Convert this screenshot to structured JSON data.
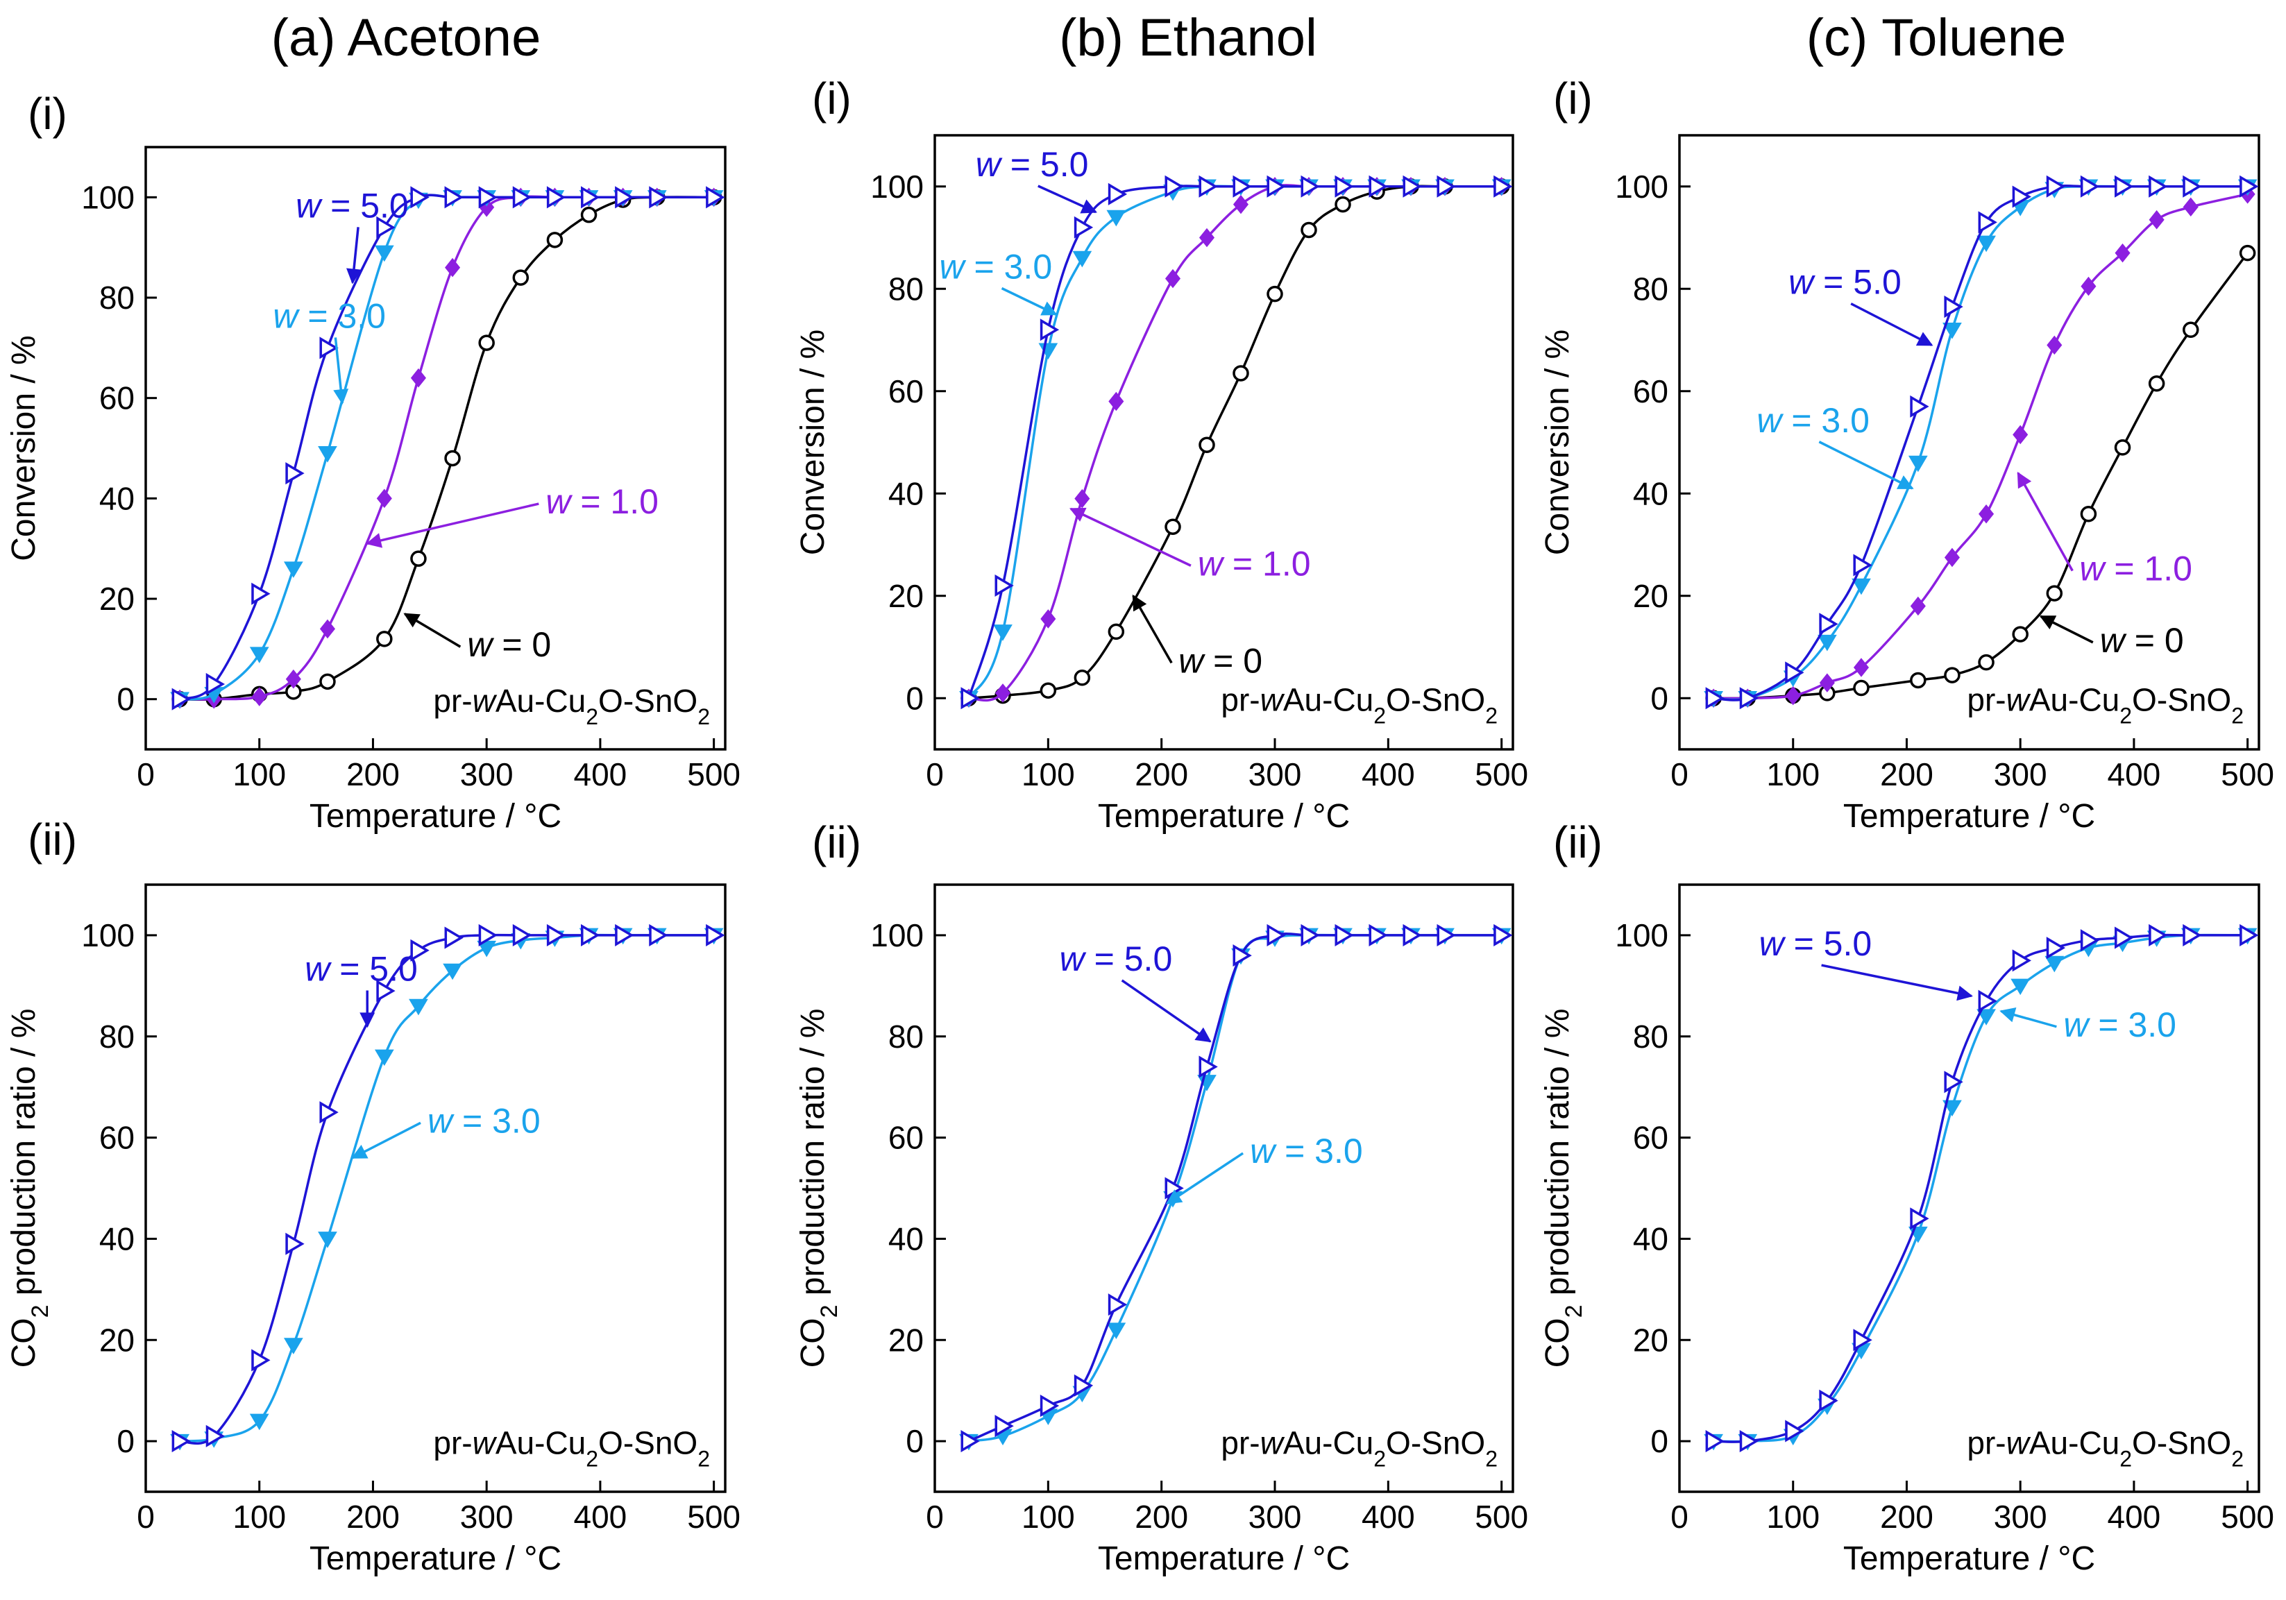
{
  "colors": {
    "w0": "#000000",
    "w1": "#8c1fe0",
    "w3": "#1aa3ec",
    "w5": "#1e14d6"
  },
  "columns": [
    {
      "title": "(a) Acetone"
    },
    {
      "title": "(b) Ethanol"
    },
    {
      "title": "(c) Toluene"
    }
  ],
  "row_tags": [
    "(i)",
    "(ii)"
  ],
  "chart_data": [
    {
      "id": "a-i",
      "type": "line",
      "xlabel": "Temperature / °C",
      "ylabel": "Conversion / %",
      "ylabel_parts": {
        "pre": "Conversion / %",
        "sub": "",
        "post": ""
      },
      "xlim": [
        0,
        510
      ],
      "ylim": [
        -10,
        110
      ],
      "xticks": [
        0,
        100,
        200,
        300,
        400,
        500
      ],
      "yticks": [
        0,
        20,
        40,
        60,
        80,
        100
      ],
      "sample_label": {
        "pre": "pr-",
        "w": "w",
        "mid": "Au-Cu",
        "s1": "2",
        "mid2": "O-SnO",
        "s2": "2"
      },
      "x": [
        30,
        60,
        100,
        130,
        160,
        210,
        240,
        270,
        300,
        330,
        360,
        390,
        420,
        450,
        500
      ],
      "series": [
        {
          "name": "w = 0",
          "color_key": "w0",
          "marker": "circle",
          "values": [
            0,
            0,
            1,
            1.5,
            3.5,
            12,
            28,
            48,
            71,
            84,
            91.5,
            96.5,
            99.5,
            100,
            100
          ]
        },
        {
          "name": "w = 1.0",
          "color_key": "w1",
          "marker": "diamond",
          "values": [
            0,
            0,
            0.5,
            4,
            14,
            40,
            64,
            86,
            98,
            100,
            100,
            100,
            100,
            100,
            100
          ]
        },
        {
          "name": "w = 3.0",
          "color_key": "w3",
          "marker": "tri-down",
          "values": [
            0,
            1,
            9,
            26,
            49,
            89,
            99.5,
            100,
            100,
            100,
            100,
            100,
            100,
            100,
            100
          ]
        },
        {
          "name": "w = 5.0",
          "color_key": "w5",
          "marker": "tri-right",
          "values": [
            0,
            3,
            21,
            45,
            70,
            94,
            100,
            100,
            100,
            100,
            100,
            100,
            100,
            100,
            100
          ]
        }
      ],
      "annotations": [
        {
          "text": "w = 5.0",
          "color_key": "w5",
          "lx": 132,
          "ly": 96,
          "tx": 182,
          "ty": 83
        },
        {
          "text": "w = 3.0",
          "color_key": "w3",
          "lx": 112,
          "ly": 74,
          "tx": 173,
          "ty": 59
        },
        {
          "text": "w = 1.0",
          "color_key": "w1",
          "lx": 352,
          "ly": 37,
          "tx": 195,
          "ty": 31
        },
        {
          "text": "w = 0",
          "color_key": "w0",
          "lx": 283,
          "ly": 8.5,
          "tx": 228,
          "ty": 17
        }
      ]
    },
    {
      "id": "b-i",
      "type": "line",
      "xlabel": "Temperature / °C",
      "ylabel": "Conversion / %",
      "ylabel_parts": {
        "pre": "Conversion / %",
        "sub": "",
        "post": ""
      },
      "xlim": [
        0,
        510
      ],
      "ylim": [
        -10,
        110
      ],
      "xticks": [
        0,
        100,
        200,
        300,
        400,
        500
      ],
      "yticks": [
        0,
        20,
        40,
        60,
        80,
        100
      ],
      "sample_label": {
        "pre": "pr-",
        "w": "w",
        "mid": "Au-Cu",
        "s1": "2",
        "mid2": "O-SnO",
        "s2": "2"
      },
      "x": [
        30,
        60,
        100,
        130,
        160,
        210,
        240,
        270,
        300,
        330,
        360,
        390,
        420,
        450,
        500
      ],
      "series": [
        {
          "name": "w = 0",
          "color_key": "w0",
          "marker": "circle",
          "values": [
            0,
            0.5,
            1.5,
            4,
            13,
            33.5,
            49.5,
            63.5,
            79,
            91.5,
            96.5,
            99,
            100,
            100,
            100
          ]
        },
        {
          "name": "w = 1.0",
          "color_key": "w1",
          "marker": "diamond",
          "values": [
            0,
            1,
            15.5,
            39,
            58,
            82,
            90,
            96.5,
            100,
            100,
            100,
            100,
            100,
            100,
            100
          ]
        },
        {
          "name": "w = 3.0",
          "color_key": "w3",
          "marker": "tri-down",
          "values": [
            0,
            13,
            68,
            86,
            94,
            99,
            100,
            100,
            100,
            100,
            100,
            100,
            100,
            100,
            100
          ]
        },
        {
          "name": "w = 5.0",
          "color_key": "w5",
          "marker": "tri-right",
          "values": [
            0,
            22,
            72,
            92,
            98.5,
            100,
            100,
            100,
            100,
            100,
            100,
            100,
            100,
            100,
            100
          ]
        }
      ],
      "annotations": [
        {
          "text": "w = 5.0",
          "color_key": "w5",
          "lx": 36,
          "ly": 102,
          "tx": 142,
          "ty": 95
        },
        {
          "text": "w = 3.0",
          "color_key": "w3",
          "lx": 4,
          "ly": 82,
          "tx": 107,
          "ty": 75
        },
        {
          "text": "w = 1.0",
          "color_key": "w1",
          "lx": 232,
          "ly": 24,
          "tx": 120,
          "ty": 37
        },
        {
          "text": "w = 0",
          "color_key": "w0",
          "lx": 215,
          "ly": 5,
          "tx": 175,
          "ty": 20
        }
      ]
    },
    {
      "id": "c-i",
      "type": "line",
      "xlabel": "Temperature / °C",
      "ylabel": "Conversion / %",
      "ylabel_parts": {
        "pre": "Conversion / %",
        "sub": "",
        "post": ""
      },
      "xlim": [
        0,
        510
      ],
      "ylim": [
        -10,
        110
      ],
      "xticks": [
        0,
        100,
        200,
        300,
        400,
        500
      ],
      "yticks": [
        0,
        20,
        40,
        60,
        80,
        100
      ],
      "sample_label": {
        "pre": "pr-",
        "w": "w",
        "mid": "Au-Cu",
        "s1": "2",
        "mid2": "O-SnO",
        "s2": "2"
      },
      "x": [
        30,
        60,
        100,
        130,
        160,
        210,
        240,
        270,
        300,
        330,
        360,
        390,
        420,
        450,
        500
      ],
      "series": [
        {
          "name": "w = 0",
          "color_key": "w0",
          "marker": "circle",
          "values": [
            0,
            0,
            0.5,
            1,
            2,
            3.5,
            4.5,
            7,
            12.5,
            20.5,
            36,
            49,
            61.5,
            72,
            87
          ]
        },
        {
          "name": "w = 1.0",
          "color_key": "w1",
          "marker": "diamond",
          "values": [
            0,
            0,
            0.5,
            3,
            6,
            18,
            27.5,
            36,
            51.5,
            69,
            80.5,
            87,
            93.5,
            96,
            98.5
          ]
        },
        {
          "name": "w = 3.0",
          "color_key": "w3",
          "marker": "tri-down",
          "values": [
            0,
            0,
            4,
            11,
            22,
            46,
            72,
            89,
            96,
            99.5,
            100,
            100,
            100,
            100,
            100
          ]
        },
        {
          "name": "w = 5.0",
          "color_key": "w5",
          "marker": "tri-right",
          "values": [
            0,
            0,
            5,
            14.5,
            26,
            57,
            76.5,
            93,
            98,
            100,
            100,
            100,
            100,
            100,
            100
          ]
        }
      ],
      "annotations": [
        {
          "text": "w = 5.0",
          "color_key": "w5",
          "lx": 96,
          "ly": 79,
          "tx": 222,
          "ty": 69
        },
        {
          "text": "w = 3.0",
          "color_key": "w3",
          "lx": 68,
          "ly": 52,
          "tx": 205,
          "ty": 41
        },
        {
          "text": "w = 1.0",
          "color_key": "w1",
          "lx": 352,
          "ly": 23,
          "tx": 298,
          "ty": 44
        },
        {
          "text": "w = 0",
          "color_key": "w0",
          "lx": 370,
          "ly": 9,
          "tx": 318,
          "ty": 16
        }
      ]
    },
    {
      "id": "a-ii",
      "type": "line",
      "xlabel": "Temperature / °C",
      "ylabel": "CO2 production ratio / %",
      "ylabel_parts": {
        "pre": "CO",
        "sub": "2",
        "post": " production ratio / %"
      },
      "xlim": [
        0,
        510
      ],
      "ylim": [
        -10,
        110
      ],
      "xticks": [
        0,
        100,
        200,
        300,
        400,
        500
      ],
      "yticks": [
        0,
        20,
        40,
        60,
        80,
        100
      ],
      "sample_label": {
        "pre": "pr-",
        "w": "w",
        "mid": "Au-Cu",
        "s1": "2",
        "mid2": "O-SnO",
        "s2": "2"
      },
      "x": [
        30,
        60,
        100,
        130,
        160,
        210,
        240,
        270,
        300,
        330,
        360,
        390,
        420,
        450,
        500
      ],
      "series": [
        {
          "name": "w = 3.0",
          "color_key": "w3",
          "marker": "tri-down",
          "values": [
            0,
            0.5,
            4,
            19,
            40,
            76,
            86,
            93,
            97.5,
            99,
            99.5,
            100,
            100,
            100,
            100
          ]
        },
        {
          "name": "w = 5.0",
          "color_key": "w5",
          "marker": "tri-right",
          "values": [
            0,
            1,
            16,
            39,
            65,
            89,
            97,
            99.5,
            100,
            100,
            100,
            100,
            100,
            100,
            100
          ]
        }
      ],
      "annotations": [
        {
          "text": "w = 5.0",
          "color_key": "w5",
          "lx": 140,
          "ly": 91,
          "tx": 195,
          "ty": 82
        },
        {
          "text": "w = 3.0",
          "color_key": "w3",
          "lx": 248,
          "ly": 61,
          "tx": 182,
          "ty": 56
        }
      ]
    },
    {
      "id": "b-ii",
      "type": "line",
      "xlabel": "Temperature / °C",
      "ylabel": "CO2 production ratio / %",
      "ylabel_parts": {
        "pre": "CO",
        "sub": "2",
        "post": " production ratio / %"
      },
      "xlim": [
        0,
        510
      ],
      "ylim": [
        -10,
        110
      ],
      "xticks": [
        0,
        100,
        200,
        300,
        400,
        500
      ],
      "yticks": [
        0,
        20,
        40,
        60,
        80,
        100
      ],
      "sample_label": {
        "pre": "pr-",
        "w": "w",
        "mid": "Au-Cu",
        "s1": "2",
        "mid2": "O-SnO",
        "s2": "2"
      },
      "x": [
        30,
        60,
        100,
        130,
        160,
        210,
        240,
        270,
        300,
        330,
        360,
        390,
        420,
        450,
        500
      ],
      "series": [
        {
          "name": "w = 3.0",
          "color_key": "w3",
          "marker": "tri-down",
          "values": [
            0,
            1,
            5,
            9.5,
            22,
            48,
            71,
            96,
            99.5,
            100,
            100,
            100,
            100,
            100,
            100
          ]
        },
        {
          "name": "w = 5.0",
          "color_key": "w5",
          "marker": "tri-right",
          "values": [
            0,
            3,
            7,
            11,
            27,
            50,
            74,
            96,
            100,
            100,
            100,
            100,
            100,
            100,
            100
          ]
        }
      ],
      "annotations": [
        {
          "text": "w = 5.0",
          "color_key": "w5",
          "lx": 110,
          "ly": 93,
          "tx": 243,
          "ty": 79
        },
        {
          "text": "w = 3.0",
          "color_key": "w3",
          "lx": 278,
          "ly": 55,
          "tx": 205,
          "ty": 47
        }
      ]
    },
    {
      "id": "c-ii",
      "type": "line",
      "xlabel": "Temperature / °C",
      "ylabel": "CO2 production ratio / %",
      "ylabel_parts": {
        "pre": "CO",
        "sub": "2",
        "post": " production ratio / %"
      },
      "xlim": [
        0,
        510
      ],
      "ylim": [
        -10,
        110
      ],
      "xticks": [
        0,
        100,
        200,
        300,
        400,
        500
      ],
      "yticks": [
        0,
        20,
        40,
        60,
        80,
        100
      ],
      "sample_label": {
        "pre": "pr-",
        "w": "w",
        "mid": "Au-Cu",
        "s1": "2",
        "mid2": "O-SnO",
        "s2": "2"
      },
      "x": [
        30,
        60,
        100,
        130,
        160,
        210,
        240,
        270,
        300,
        330,
        360,
        390,
        420,
        450,
        500
      ],
      "series": [
        {
          "name": "w = 3.0",
          "color_key": "w3",
          "marker": "tri-down",
          "values": [
            0,
            0,
            1,
            7,
            18,
            41,
            66,
            84,
            90,
            94.5,
            97.5,
            98.5,
            99.5,
            100,
            100
          ]
        },
        {
          "name": "w = 5.0",
          "color_key": "w5",
          "marker": "tri-right",
          "values": [
            0,
            0,
            2,
            8,
            20,
            44,
            71,
            87,
            95,
            97.5,
            99,
            99.5,
            100,
            100,
            100
          ]
        }
      ],
      "annotations": [
        {
          "text": "w = 5.0",
          "color_key": "w5",
          "lx": 70,
          "ly": 96,
          "tx": 257,
          "ty": 88
        },
        {
          "text": "w = 3.0",
          "color_key": "w3",
          "lx": 338,
          "ly": 80,
          "tx": 283,
          "ty": 85
        }
      ]
    }
  ]
}
